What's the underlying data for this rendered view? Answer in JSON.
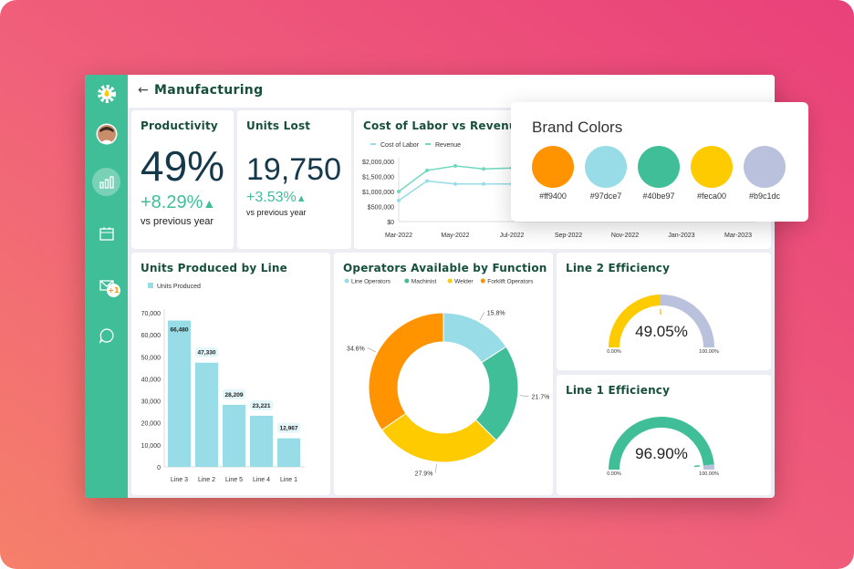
{
  "header": {
    "title": "Manufacturing",
    "back_icon": "arrow-left-icon"
  },
  "sidebar": {
    "items": [
      {
        "icon": "gear-logo-icon"
      },
      {
        "icon": "avatar"
      },
      {
        "icon": "bar-chart-icon",
        "active": true
      },
      {
        "icon": "calendar-icon"
      },
      {
        "icon": "mail-icon",
        "badge": "+1"
      },
      {
        "icon": "chat-bubble-icon"
      }
    ]
  },
  "productivity": {
    "title": "Productivity",
    "value": "49%",
    "delta": "+8.29%",
    "sub": "vs previous year"
  },
  "units_lost": {
    "title": "Units Lost",
    "value": "19,750",
    "delta": "+3.53%",
    "sub": "vs previous year"
  },
  "brand": {
    "title": "Brand Colors",
    "colors": [
      {
        "hex": "#ff9400",
        "label": "#ff9400"
      },
      {
        "hex": "#97dce7",
        "label": "#97dce7"
      },
      {
        "hex": "#40be97",
        "label": "#40be97"
      },
      {
        "hex": "#feca00",
        "label": "#feca00"
      },
      {
        "hex": "#b9c1dc",
        "label": "#b9c1dc"
      }
    ]
  },
  "chart_data": [
    {
      "id": "labor",
      "type": "line",
      "title": "Cost of Labor vs Revenue",
      "x_ticks": [
        "Mar-2022",
        "May-2022",
        "Jul-2022",
        "Sep-2022",
        "Nov-2022",
        "Jan-2023",
        "Mar-2023"
      ],
      "y_ticks": [
        "$2,000,000",
        "$1,500,000",
        "$1,000,000",
        "$500,000",
        "$0"
      ],
      "ylim": [
        0,
        2000000
      ],
      "x": [
        "Mar-2022",
        "Apr-2022",
        "May-2022",
        "Jun-2022",
        "Jul-2022"
      ],
      "series": [
        {
          "name": "Cost of Labor",
          "color": "#97dce7",
          "values": [
            700000,
            1350000,
            1250000,
            1250000,
            1250000
          ]
        },
        {
          "name": "Revenue",
          "color": "#6fd8bf",
          "values": [
            1000000,
            1700000,
            1850000,
            1750000,
            1780000
          ]
        }
      ]
    },
    {
      "id": "units",
      "type": "bar",
      "title": "Units Produced by Line",
      "legend": "Units Produced",
      "categories": [
        "Line 3",
        "Line 2",
        "Line 5",
        "Line 4",
        "Line 1"
      ],
      "values": [
        66480,
        47330,
        28209,
        23221,
        12967
      ],
      "labels": [
        "66,480",
        "47,330",
        "28,209",
        "23,221",
        "12,967"
      ],
      "y_ticks": [
        "70,000",
        "60,000",
        "50,000",
        "40,000",
        "30,000",
        "20,000",
        "10,000",
        "0"
      ],
      "ylim": [
        0,
        70000
      ],
      "color": "#97dce7"
    },
    {
      "id": "operators",
      "type": "pie",
      "title": "Operators Available by Function",
      "series": [
        {
          "name": "Line Operators",
          "value": 15.8,
          "label": "15.8%",
          "color": "#97dce7"
        },
        {
          "name": "Machinist",
          "value": 21.7,
          "label": "21.7%",
          "color": "#40be97"
        },
        {
          "name": "Welder",
          "value": 27.9,
          "label": "27.9%",
          "color": "#feca00"
        },
        {
          "name": "Forklift Operators",
          "value": 34.6,
          "label": "34.6%",
          "color": "#ff9400"
        }
      ]
    },
    {
      "id": "line2",
      "type": "gauge",
      "title": "Line 2 Efficiency",
      "value": 49.05,
      "label": "49.05%",
      "min_label": "0.00%",
      "max_label": "100.00%",
      "color": "#feca00",
      "track": "#b9c1dc"
    },
    {
      "id": "line1",
      "type": "gauge",
      "title": "Line 1 Efficiency",
      "value": 96.9,
      "label": "96.90%",
      "min_label": "0.00%",
      "max_label": "100.00%",
      "color": "#40be97",
      "track": "#b9c1dc"
    }
  ]
}
